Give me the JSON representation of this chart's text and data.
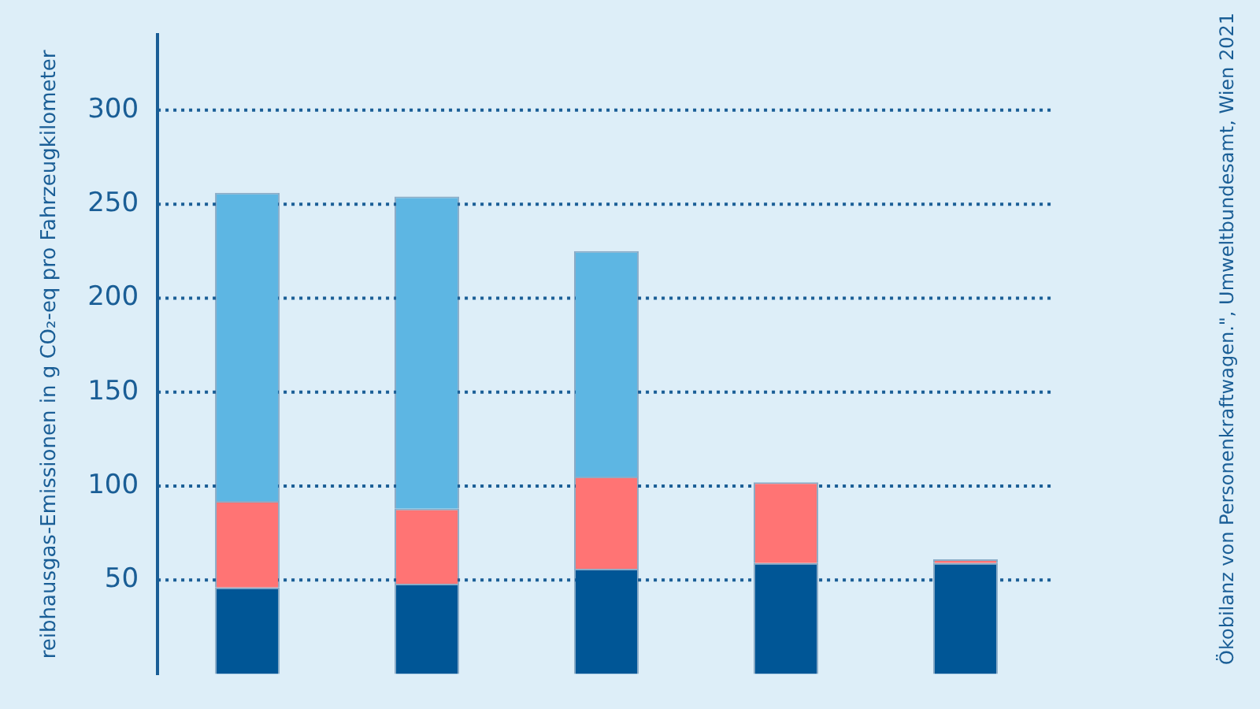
{
  "chart_data": {
    "type": "bar",
    "stacked": true,
    "categories": [
      null,
      null,
      null,
      null,
      null
    ],
    "series": [
      {
        "color": "#005696",
        "values": [
          46,
          48,
          56,
          59,
          59
        ]
      },
      {
        "color": "#ff7474",
        "values": [
          46,
          40,
          49,
          43,
          2
        ]
      },
      {
        "color": "#5db6e3",
        "values": [
          164,
          166,
          120,
          null,
          null
        ]
      }
    ],
    "ylabel": "reibhausgas-Emissionen in g CO₂-eq pro Fahrzeugkilometer",
    "ylim": [
      0,
      340
    ],
    "yticks": [
      50,
      100,
      150,
      200,
      250,
      300
    ],
    "grid": "y",
    "tick_labels": "y",
    "legend": false,
    "annotations": [
      "Ökobilanz von Personenkraftwagen.\", Umweltbundesamt, Wien 2021"
    ]
  }
}
